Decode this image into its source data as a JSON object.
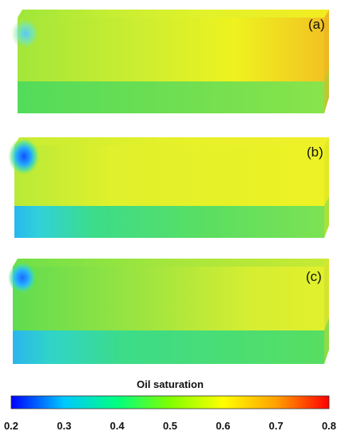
{
  "panels": [
    {
      "label": "(a)"
    },
    {
      "label": "(b)"
    },
    {
      "label": "(c)"
    }
  ],
  "colorbar": {
    "title": "Oil saturation",
    "min": 0.2,
    "max": 0.8,
    "ticks": [
      "0.2",
      "0.3",
      "0.4",
      "0.5",
      "0.6",
      "0.7",
      "0.8"
    ],
    "colormap": [
      "#0000ff",
      "#00c8ff",
      "#00ff80",
      "#80ff00",
      "#ffff00",
      "#ffa000",
      "#ff0000"
    ]
  }
}
